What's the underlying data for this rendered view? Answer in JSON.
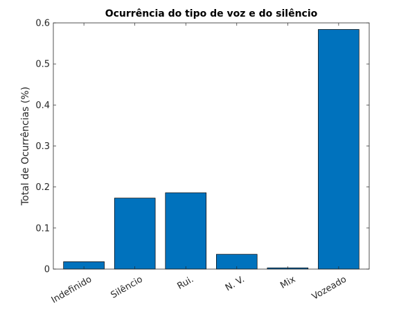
{
  "chart_data": {
    "type": "bar",
    "title": "Ocurrência do tipo de voz e do silêncio",
    "xlabel": "",
    "ylabel": "Total de Ocurrências (%)",
    "categories": [
      "Indefinido",
      "Silêncio",
      "Rui.",
      "N. V.",
      "Mix",
      "Vozeado"
    ],
    "values": [
      0.018,
      0.173,
      0.186,
      0.036,
      0.003,
      0.584
    ],
    "ylim": [
      0,
      0.6
    ],
    "yticks": [
      "0",
      "0.1",
      "0.2",
      "0.3",
      "0.4",
      "0.5",
      "0.6"
    ],
    "bar_color": "#0072BD",
    "grid": false,
    "legend": "none"
  }
}
